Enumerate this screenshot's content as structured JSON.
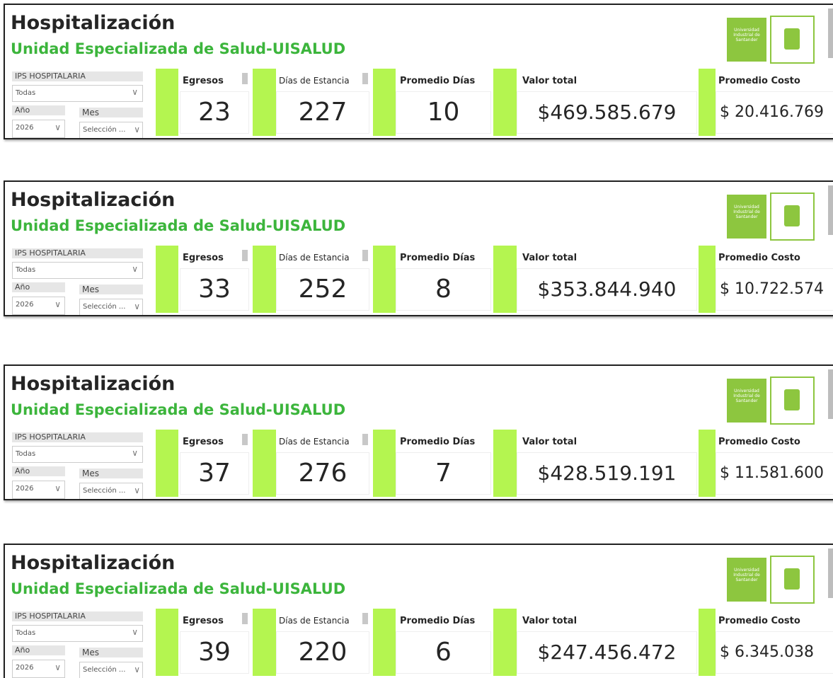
{
  "panels": [
    {
      "title": "Hospitalización",
      "subtitle": "Unidad Especializada de Salud-UISALUD",
      "logo_text": "Universidad Industrial de Santander",
      "filters": {
        "ips_label": "IPS HOSPITALARIA",
        "ips_value": "Todas",
        "year_label": "Año",
        "year_value": "2026",
        "month_label": "Mes",
        "month_value": "Selección ..."
      },
      "kpis": [
        {
          "label": "Egresos",
          "value": "23"
        },
        {
          "label": "Días de Estancia",
          "value": "227"
        },
        {
          "label": "Promedio Días",
          "value": "10"
        },
        {
          "label": "Valor total",
          "value": "$469.585.679"
        },
        {
          "label": "Promedio Costo",
          "value": "$ 20.416.769"
        }
      ]
    },
    {
      "title": "Hospitalización",
      "subtitle": "Unidad Especializada de Salud-UISALUD",
      "logo_text": "Universidad Industrial de Santander",
      "filters": {
        "ips_label": "IPS HOSPITALARIA",
        "ips_value": "Todas",
        "year_label": "Año",
        "year_value": "2026",
        "month_label": "Mes",
        "month_value": "Selección ..."
      },
      "kpis": [
        {
          "label": "Egresos",
          "value": "33"
        },
        {
          "label": "Días de Estancia",
          "value": "252"
        },
        {
          "label": "Promedio Días",
          "value": "8"
        },
        {
          "label": "Valor total",
          "value": "$353.844.940"
        },
        {
          "label": "Promedio Costo",
          "value": "$ 10.722.574"
        }
      ]
    },
    {
      "title": "Hospitalización",
      "subtitle": "Unidad Especializada de Salud-UISALUD",
      "logo_text": "Universidad Industrial de Santander",
      "filters": {
        "ips_label": "IPS HOSPITALARIA",
        "ips_value": "Todas",
        "year_label": "Año",
        "year_value": "2026",
        "month_label": "Mes",
        "month_value": "Selección ..."
      },
      "kpis": [
        {
          "label": "Egresos",
          "value": "37"
        },
        {
          "label": "Días de Estancia",
          "value": "276"
        },
        {
          "label": "Promedio Días",
          "value": "7"
        },
        {
          "label": "Valor total",
          "value": "$428.519.191"
        },
        {
          "label": "Promedio Costo",
          "value": "$ 11.581.600"
        }
      ]
    },
    {
      "title": "Hospitalización",
      "subtitle": "Unidad Especializada de Salud-UISALUD",
      "logo_text": "Universidad Industrial de Santander",
      "filters": {
        "ips_label": "IPS HOSPITALARIA",
        "ips_value": "Todas",
        "year_label": "Año",
        "year_value": "2026",
        "month_label": "Mes",
        "month_value": "Selección ..."
      },
      "kpis": [
        {
          "label": "Egresos",
          "value": "39"
        },
        {
          "label": "Días de Estancia",
          "value": "220"
        },
        {
          "label": "Promedio Días",
          "value": "6"
        },
        {
          "label": "Valor total",
          "value": "$247.456.472"
        },
        {
          "label": "Promedio Costo",
          "value": "$ 6.345.038"
        }
      ]
    }
  ]
}
